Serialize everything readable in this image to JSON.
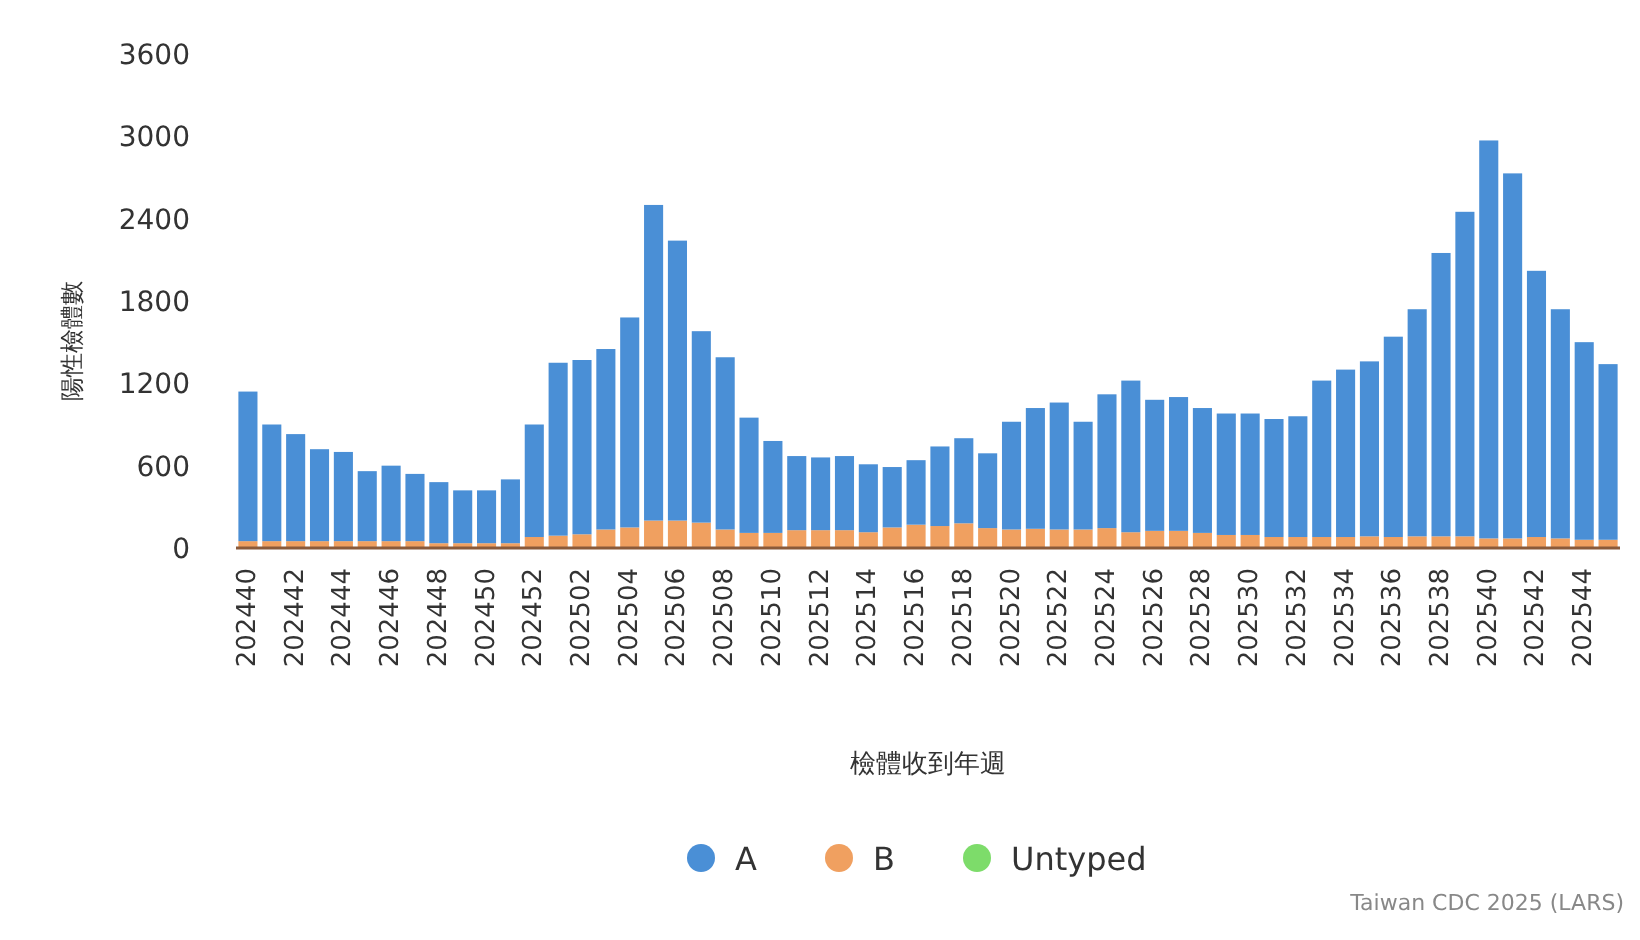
{
  "chart_data": {
    "type": "bar",
    "stacked": true,
    "ylabel": "陽性檢體數",
    "xlabel": "檢體收到年週",
    "categories": [
      "202440",
      null,
      "202442",
      null,
      "202444",
      null,
      "202446",
      null,
      "202448",
      null,
      "202450",
      null,
      "202452",
      null,
      "202502",
      null,
      "202504",
      null,
      "202506",
      null,
      "202508",
      null,
      "202510",
      null,
      "202512",
      null,
      "202514",
      null,
      "202516",
      null,
      "202518",
      null,
      "202520",
      null,
      "202522",
      null,
      "202524",
      null,
      "202526",
      null,
      "202528",
      null,
      "202530",
      null,
      "202532",
      null,
      "202534",
      null,
      "202536",
      null,
      "202538",
      null,
      "202540",
      null,
      "202542",
      null,
      "202544",
      null
    ],
    "series": [
      {
        "name": "Untyped",
        "color": "#7ddc6a",
        "values": [
          0,
          0,
          0,
          0,
          0,
          0,
          0,
          0,
          0,
          0,
          0,
          0,
          0,
          0,
          0,
          0,
          0,
          0,
          0,
          0,
          0,
          0,
          0,
          0,
          0,
          0,
          0,
          0,
          0,
          0,
          0,
          0,
          0,
          0,
          0,
          0,
          0,
          0,
          0,
          0,
          0,
          0,
          0,
          0,
          0,
          0,
          0,
          0,
          0,
          0,
          0,
          0,
          0,
          0,
          0,
          0,
          0,
          0
        ]
      },
      {
        "name": "B",
        "color": "#f0a060",
        "values": [
          50,
          50,
          50,
          50,
          50,
          50,
          50,
          50,
          35,
          35,
          35,
          35,
          80,
          90,
          100,
          135,
          150,
          200,
          200,
          185,
          135,
          110,
          110,
          130,
          130,
          130,
          115,
          150,
          170,
          160,
          180,
          145,
          135,
          140,
          135,
          135,
          145,
          115,
          125,
          125,
          110,
          95,
          95,
          80,
          80,
          80,
          80,
          85,
          80,
          85,
          85,
          85,
          70,
          70,
          80,
          70,
          60,
          60
        ]
      },
      {
        "name": "A",
        "color": "#4a8fd6",
        "values": [
          1090,
          850,
          780,
          670,
          650,
          510,
          550,
          490,
          445,
          385,
          385,
          465,
          820,
          1260,
          1270,
          1315,
          1530,
          2300,
          2040,
          1395,
          1255,
          840,
          670,
          540,
          530,
          540,
          495,
          440,
          470,
          580,
          620,
          545,
          785,
          880,
          925,
          785,
          975,
          1105,
          955,
          975,
          910,
          885,
          885,
          860,
          880,
          1140,
          1220,
          1275,
          1460,
          1655,
          2065,
          2365,
          2900,
          2660,
          1940,
          1670,
          1440,
          1280
        ]
      }
    ],
    "ylim": [
      0,
      3600
    ],
    "yticks": [
      0,
      600,
      1200,
      1800,
      2400,
      3000,
      3600
    ],
    "legend": "bottom",
    "annotations": [
      "Taiwan CDC 2025 (LARS)"
    ]
  }
}
